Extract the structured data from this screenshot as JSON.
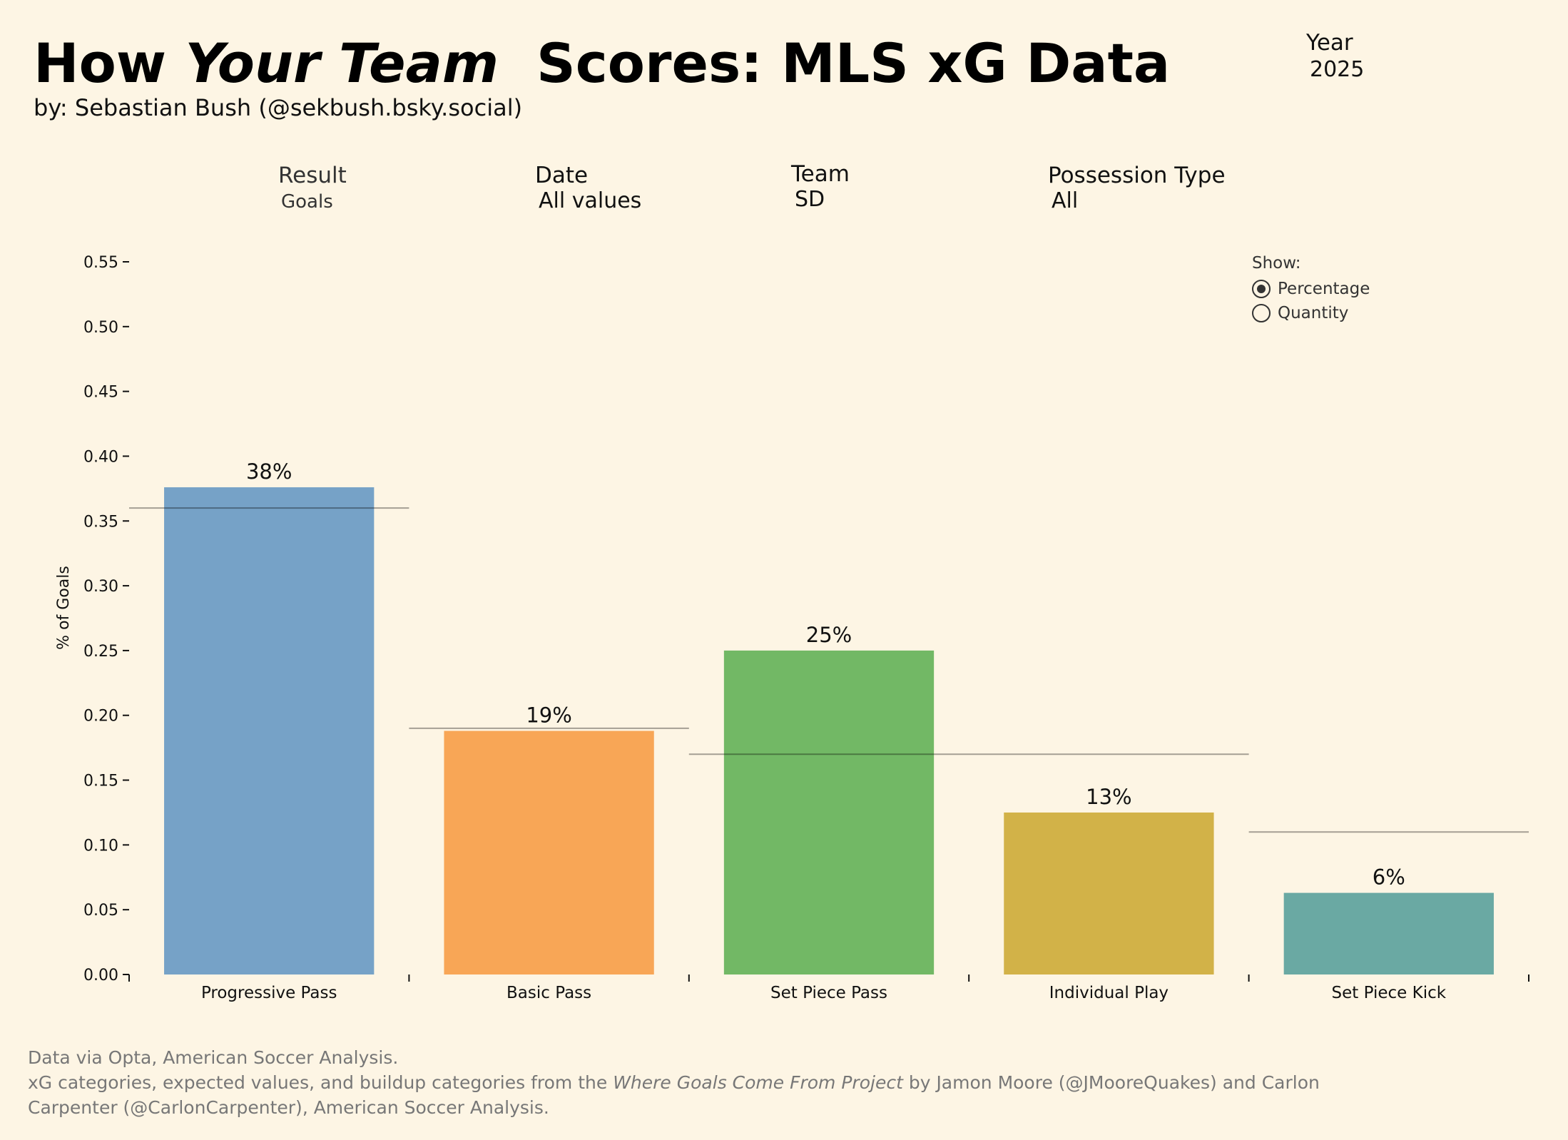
{
  "header": {
    "title_part1": "How",
    "title_italic": "Your Team",
    "title_part2": "Scores: MLS xG Data",
    "byline": "by: Sebastian Bush (@sekbush.bsky.social)",
    "year_label": "Year",
    "year_value": "2025"
  },
  "filters": {
    "result": {
      "label": "Result",
      "value": "Goals"
    },
    "date": {
      "label": "Date",
      "value": "All values"
    },
    "team": {
      "label": "Team",
      "value": "SD"
    },
    "possession": {
      "label": "Possession Type",
      "value": "All"
    }
  },
  "show": {
    "label": "Show:",
    "options": [
      "Percentage",
      "Quantity"
    ],
    "selected": "Percentage"
  },
  "footer": {
    "line1": "Data via Opta, American Soccer Analysis.",
    "line2_prefix": "xG categories, expected values, and buildup categories from the",
    "line2_italic": "Where Goals Come From Project",
    "line2_suffix": "by Jamon Moore (@JMooreQuakes) and Carlon",
    "line3": "Carpenter (@CarlonCarpenter), American Soccer Analysis."
  },
  "chart_data": {
    "type": "bar",
    "categories": [
      "Progressive Pass",
      "Basic Pass",
      "Set Piece Pass",
      "Individual Play",
      "Set Piece Kick"
    ],
    "values": [
      0.376,
      0.188,
      0.25,
      0.125,
      0.063
    ],
    "value_labels": [
      "38%",
      "19%",
      "25%",
      "13%",
      "6%"
    ],
    "expected_values": [
      0.36,
      0.19,
      0.17,
      0.17,
      0.11
    ],
    "expected_spans": [
      [
        0,
        0
      ],
      [
        1,
        1
      ],
      [
        2,
        3
      ],
      [
        2,
        3
      ],
      [
        4,
        4
      ]
    ],
    "colors": [
      "#76a2c7",
      "#f8a656",
      "#72b865",
      "#d2b248",
      "#6aa9a3"
    ],
    "ylabel": "% of Goals",
    "ylim": [
      0,
      0.55
    ],
    "yticks": [
      "0.00",
      "0.05",
      "0.10",
      "0.15",
      "0.20",
      "0.25",
      "0.30",
      "0.35",
      "0.40",
      "0.45",
      "0.50",
      "0.55"
    ],
    "grid": false
  }
}
